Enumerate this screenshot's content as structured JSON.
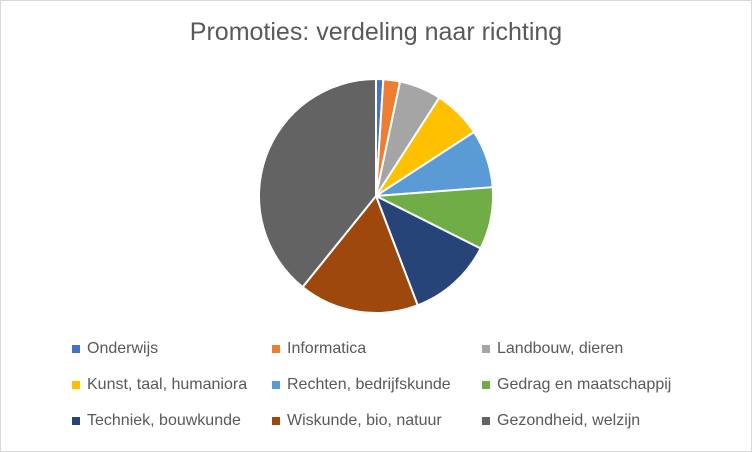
{
  "chart_data": {
    "type": "pie",
    "title": "Promoties: verdeling naar richting",
    "categories": [
      "Onderwijs",
      "Informatica",
      "Landbouw, dieren",
      "Kunst, taal, humaniora",
      "Rechten, bedrijfskunde",
      "Gedrag en maatschappij",
      "Techniek, bouwkunde",
      "Wiskunde, bio, natuur",
      "Gezondheid, welzijn"
    ],
    "values": [
      1.0,
      2.3,
      5.8,
      6.7,
      8.0,
      8.6,
      11.8,
      16.6,
      39.2
    ],
    "colors": [
      "#4472c4",
      "#ed7d31",
      "#a5a5a5",
      "#ffc000",
      "#5b9bd5",
      "#70ad47",
      "#264478",
      "#9e480e",
      "#636363"
    ],
    "legend_position": "bottom"
  }
}
